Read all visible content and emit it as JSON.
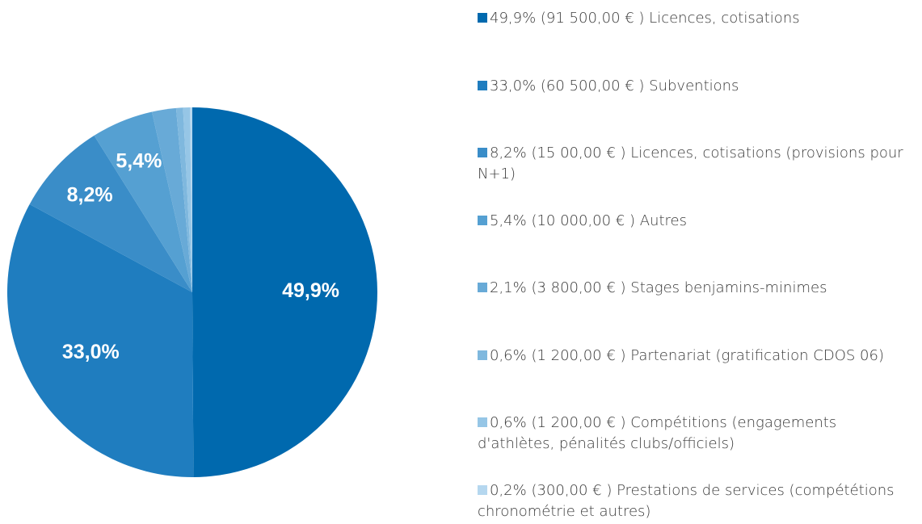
{
  "chart_data": {
    "type": "pie",
    "categories": [
      "49,9% (91 500,00 € ) Licences, cotisations",
      "33,0% (60 500,00 € ) Subventions",
      "8,2% (15 00,00 € ) Licences, cotisations (provisions pour N+1)",
      "5,4% (10 000,00 € ) Autres",
      "2,1% (3 800,00 € ) Stages benjamins-minimes",
      "0,6% (1 200,00 € ) Partenariat (gratification CDOS 06)",
      "0,6% (1 200,00 € ) Compétitions (engagements d'athlètes, pénalités clubs/officiels)",
      "0,2% (300,00 € ) Prestations de services (compététions chronométrie et autres)"
    ],
    "values": [
      49.9,
      33.0,
      8.2,
      5.4,
      2.1,
      0.6,
      0.6,
      0.2
    ],
    "value_labels": [
      "49,9%",
      "33,0%",
      "8,2%",
      "5,4%",
      null,
      null,
      null,
      null
    ],
    "colors": [
      "#0069ae",
      "#1f7dbf",
      "#3a8dc8",
      "#55a0d2",
      "#68aad7",
      "#7fb8de",
      "#96c6e6",
      "#b5d7ef"
    ],
    "legend": "right"
  }
}
